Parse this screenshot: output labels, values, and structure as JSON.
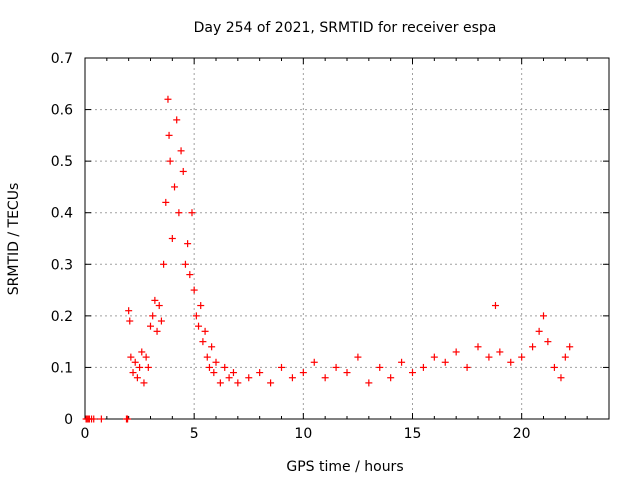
{
  "chart_data": {
    "type": "scatter",
    "title": "Day 254 of 2021, SRMTID for receiver espa",
    "xlabel": "GPS time / hours",
    "ylabel": "SRMTID / TECUs",
    "xlim": [
      0,
      24
    ],
    "ylim": [
      0,
      0.7
    ],
    "x_ticks": [
      0,
      5,
      10,
      15,
      20
    ],
    "y_ticks": [
      0,
      0.1,
      0.2,
      0.3,
      0.4,
      0.5,
      0.6,
      0.7
    ],
    "x_tick_labels": [
      "0",
      "5",
      "10",
      "15",
      "20"
    ],
    "y_tick_labels": [
      "0",
      "0.1",
      "0.2",
      "0.3",
      "0.4",
      "0.5",
      "0.6",
      "0.7"
    ],
    "grid": true,
    "marker": "+",
    "color": "#ff0000",
    "series": [
      {
        "name": "SRMTID",
        "x": [
          0.05,
          0.1,
          0.15,
          0.2,
          0.3,
          0.4,
          0.75,
          1.9,
          1.95,
          2.0,
          2.05,
          2.1,
          2.2,
          2.3,
          2.4,
          2.5,
          2.6,
          2.7,
          2.8,
          2.9,
          3.0,
          3.1,
          3.2,
          3.3,
          3.4,
          3.5,
          3.6,
          3.7,
          3.8,
          3.85,
          3.9,
          4.0,
          4.1,
          4.2,
          4.3,
          4.4,
          4.5,
          4.6,
          4.7,
          4.8,
          4.9,
          5.0,
          5.1,
          5.2,
          5.3,
          5.4,
          5.5,
          5.6,
          5.7,
          5.8,
          5.9,
          6.0,
          6.2,
          6.4,
          6.6,
          6.8,
          7.0,
          7.5,
          8.0,
          8.5,
          9.0,
          9.5,
          10.0,
          10.5,
          11.0,
          11.5,
          12.0,
          12.5,
          13.0,
          13.5,
          14.0,
          14.5,
          15.0,
          15.5,
          16.0,
          16.5,
          17.0,
          17.5,
          18.0,
          18.5,
          18.8,
          19.0,
          19.5,
          20.0,
          20.5,
          20.8,
          21.0,
          21.2,
          21.5,
          21.8,
          22.0,
          22.2
        ],
        "y": [
          0.0,
          0.0,
          0.0,
          0.0,
          0.0,
          0.0,
          0.0,
          0.0,
          0.0,
          0.21,
          0.19,
          0.12,
          0.09,
          0.11,
          0.08,
          0.1,
          0.13,
          0.07,
          0.12,
          0.1,
          0.18,
          0.2,
          0.23,
          0.17,
          0.22,
          0.19,
          0.3,
          0.42,
          0.62,
          0.55,
          0.5,
          0.35,
          0.45,
          0.58,
          0.4,
          0.52,
          0.48,
          0.3,
          0.34,
          0.28,
          0.4,
          0.25,
          0.2,
          0.18,
          0.22,
          0.15,
          0.17,
          0.12,
          0.1,
          0.14,
          0.09,
          0.11,
          0.07,
          0.1,
          0.08,
          0.09,
          0.07,
          0.08,
          0.09,
          0.07,
          0.1,
          0.08,
          0.09,
          0.11,
          0.08,
          0.1,
          0.09,
          0.12,
          0.07,
          0.1,
          0.08,
          0.11,
          0.09,
          0.1,
          0.12,
          0.11,
          0.13,
          0.1,
          0.14,
          0.12,
          0.22,
          0.13,
          0.11,
          0.12,
          0.14,
          0.17,
          0.2,
          0.15,
          0.1,
          0.08,
          0.12,
          0.14
        ]
      }
    ]
  }
}
